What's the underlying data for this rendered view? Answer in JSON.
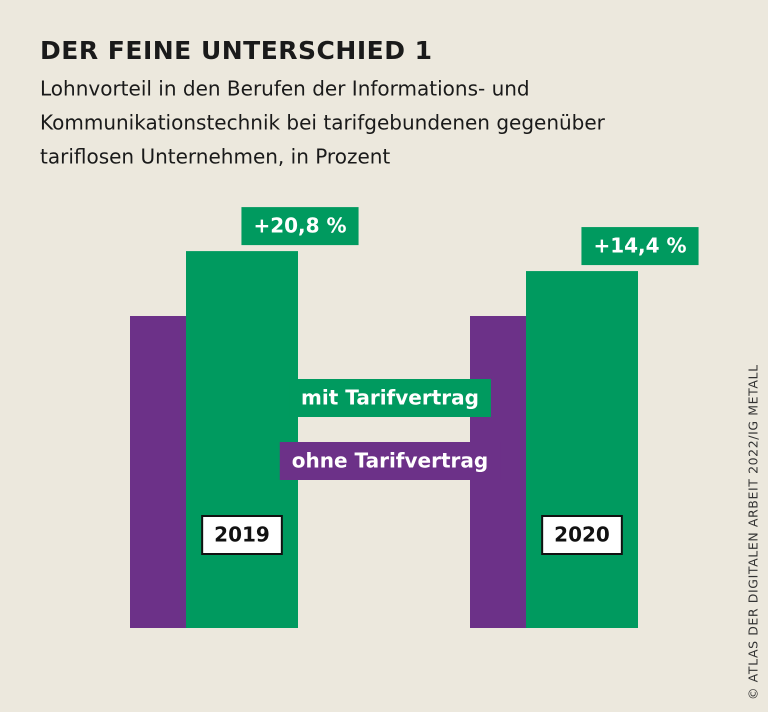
{
  "chart_data": {
    "type": "bar",
    "title": "DER FEINE UNTERSCHIED 1",
    "subtitle": [
      "Lohnvorteil in den Berufen der Informations- und",
      "Kommunikationstechnik bei tarifgebundenen gegenüber",
      "tariflosen Unternehmen, in Prozent"
    ],
    "categories": [
      "2019",
      "2020"
    ],
    "series": [
      {
        "name": "ohne Tarifvertrag",
        "color": "#6c3188",
        "values": [
          0,
          0
        ]
      },
      {
        "name": "mit Tarifvertrag",
        "color": "#009a5f",
        "values": [
          20.8,
          14.4
        ],
        "value_labels": [
          "+20,8 %",
          "+14,4 %"
        ]
      }
    ],
    "ylim": [
      -100,
      40
    ],
    "source": "© ATLAS DER DIGITALEN ARBEIT 2022/IG METALL"
  }
}
